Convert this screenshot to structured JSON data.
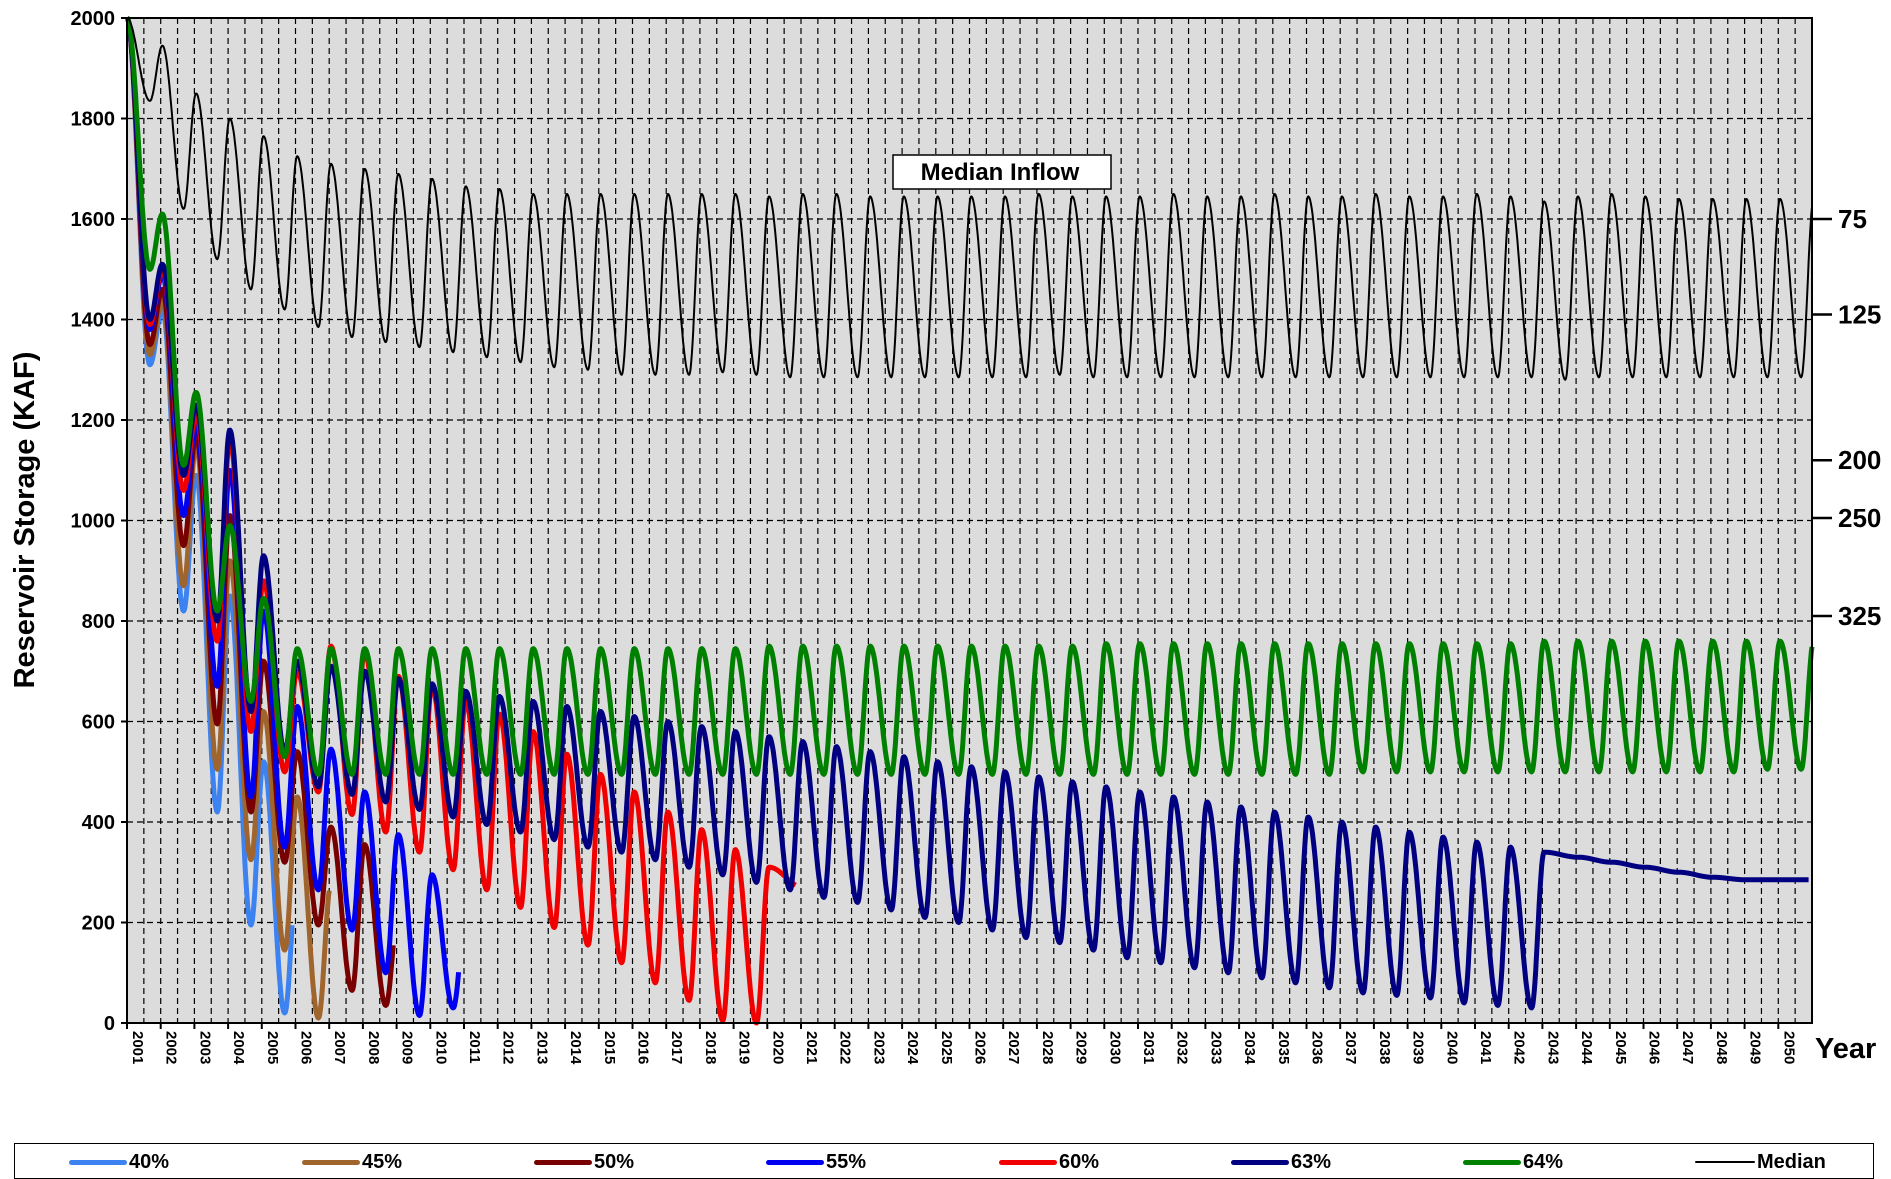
{
  "chart_data": {
    "type": "line",
    "title": "Median Inflow",
    "ylabel": "Reservoir Storage (KAF)",
    "xlabel": "Year",
    "ylim": [
      0,
      2000
    ],
    "y_ticks": [
      0,
      200,
      400,
      600,
      800,
      1000,
      1200,
      1400,
      1600,
      1800,
      2000
    ],
    "xlim": [
      2001,
      2051
    ],
    "x_tick_labels": [
      "2001",
      "2002",
      "2003",
      "2004",
      "2005",
      "2006",
      "2007",
      "2008",
      "2009",
      "2010",
      "2011",
      "2012",
      "2013",
      "2014",
      "2015",
      "2016",
      "2017",
      "2018",
      "2019",
      "2020",
      "2021",
      "2022",
      "2023",
      "2024",
      "2025",
      "2026",
      "2027",
      "2028",
      "2029",
      "2030",
      "2031",
      "2032",
      "2033",
      "2034",
      "2035",
      "2036",
      "2037",
      "2038",
      "2039",
      "2040",
      "2041",
      "2042",
      "2043",
      "2044",
      "2045",
      "2046",
      "2047",
      "2048",
      "2049",
      "2050"
    ],
    "right_axis_labels": [
      {
        "label": "75",
        "y": 1600
      },
      {
        "label": "125",
        "y": 1410
      },
      {
        "label": "200",
        "y": 1120
      },
      {
        "label": "250",
        "y": 1005
      },
      {
        "label": "325",
        "y": 810
      }
    ],
    "grid": true,
    "legend_position": "bottom",
    "background": "#dcdcdc",
    "series": [
      {
        "name": "40%",
        "color": "#3c82f0",
        "width": 5,
        "end_year": 2005.9,
        "peaks": [
          1420,
          1090,
          850,
          520,
          290
        ],
        "troughs": [
          820,
          420,
          195,
          20
        ]
      },
      {
        "name": "45%",
        "color": "#a0642d",
        "width": 5,
        "end_year": 2007.0,
        "peaks": [
          1440,
          1150,
          920,
          620,
          450,
          275
        ],
        "troughs": [
          870,
          505,
          325,
          145,
          10
        ]
      },
      {
        "name": "50%",
        "color": "#780000",
        "width": 5,
        "end_year": 2008.9,
        "peaks": [
          1460,
          1170,
          1010,
          720,
          540,
          390,
          355,
          220
        ],
        "troughs": [
          950,
          595,
          420,
          320,
          195,
          65,
          35
        ]
      },
      {
        "name": "55%",
        "color": "#0000f0",
        "width": 5,
        "end_year": 2010.85,
        "peaks": [
          1490,
          1190,
          1100,
          820,
          630,
          545,
          460,
          375,
          295,
          210
        ],
        "troughs": [
          1010,
          670,
          450,
          350,
          265,
          185,
          100,
          15,
          30
        ]
      },
      {
        "name": "60%",
        "color": "#f00000",
        "width": 5,
        "end_year": 2020.85,
        "peaks": [
          1500,
          1210,
          1160,
          880,
          700,
          750,
          740,
          690,
          670,
          640,
          615,
          580,
          535,
          495,
          460,
          420,
          385,
          345,
          310,
          270,
          235
        ],
        "troughs": [
          1060,
          760,
          580,
          500,
          460,
          415,
          380,
          340,
          305,
          265,
          230,
          190,
          155,
          120,
          80,
          45,
          5,
          0
        ]
      },
      {
        "name": "63%",
        "color": "#000080",
        "width": 5,
        "end_year": 2050.9,
        "peaks": [
          1510,
          1230,
          1180,
          930,
          720,
          710,
          700,
          685,
          675,
          660,
          650,
          640,
          630,
          620,
          610,
          600,
          590,
          580,
          570,
          560,
          550,
          540,
          530,
          520,
          510,
          500,
          490,
          480,
          470,
          460,
          450,
          440,
          430,
          420,
          410,
          400,
          390,
          380,
          370,
          360,
          350,
          340,
          330,
          320,
          310,
          300,
          290,
          285
        ],
        "troughs": [
          1090,
          800,
          620,
          540,
          470,
          455,
          440,
          425,
          410,
          395,
          380,
          365,
          350,
          340,
          325,
          310,
          295,
          280,
          265,
          250,
          240,
          225,
          210,
          200,
          185,
          170,
          160,
          145,
          130,
          120,
          110,
          100,
          90,
          80,
          70,
          60,
          55,
          50,
          40,
          35,
          30
        ]
      },
      {
        "name": "64%",
        "color": "#008000",
        "width": 5,
        "end_year": 2051.0,
        "peaks": [
          1610,
          1255,
          990,
          845,
          745,
          745,
          745,
          745,
          745,
          745,
          745,
          745,
          745,
          745,
          745,
          745,
          745,
          745,
          750,
          750,
          750,
          750,
          750,
          750,
          750,
          750,
          750,
          750,
          755,
          755,
          755,
          755,
          755,
          755,
          755,
          755,
          755,
          755,
          755,
          755,
          755,
          760,
          760,
          760,
          760,
          760,
          760,
          760,
          760,
          760
        ],
        "troughs": [
          1110,
          820,
          640,
          530,
          495,
          495,
          495,
          495,
          495,
          495,
          495,
          495,
          495,
          495,
          495,
          495,
          495,
          495,
          495,
          495,
          495,
          495,
          495,
          495,
          495,
          495,
          495,
          495,
          495,
          495,
          495,
          495,
          495,
          495,
          495,
          500,
          500,
          500,
          500,
          500,
          500,
          500,
          500,
          500,
          500,
          500,
          500,
          505,
          505
        ]
      },
      {
        "name": "Median",
        "color": "#000000",
        "width": 2,
        "end_year": 2051.0,
        "peaks": [
          1945,
          1850,
          1800,
          1765,
          1725,
          1710,
          1700,
          1690,
          1680,
          1665,
          1660,
          1650,
          1650,
          1650,
          1650,
          1650,
          1650,
          1650,
          1645,
          1650,
          1650,
          1645,
          1645,
          1645,
          1645,
          1645,
          1650,
          1645,
          1645,
          1645,
          1650,
          1645,
          1645,
          1650,
          1645,
          1645,
          1650,
          1645,
          1645,
          1650,
          1645,
          1635,
          1645,
          1650,
          1645,
          1640,
          1640,
          1640,
          1640,
          1640
        ],
        "troughs": [
          1620,
          1520,
          1460,
          1420,
          1385,
          1365,
          1355,
          1345,
          1335,
          1325,
          1315,
          1305,
          1300,
          1290,
          1290,
          1290,
          1295,
          1290,
          1285,
          1285,
          1285,
          1285,
          1285,
          1285,
          1285,
          1285,
          1290,
          1285,
          1285,
          1285,
          1285,
          1285,
          1285,
          1285,
          1285,
          1285,
          1285,
          1285,
          1285,
          1285,
          1285,
          1280,
          1285,
          1285,
          1285,
          1285,
          1285,
          1285,
          1285
        ]
      }
    ]
  }
}
